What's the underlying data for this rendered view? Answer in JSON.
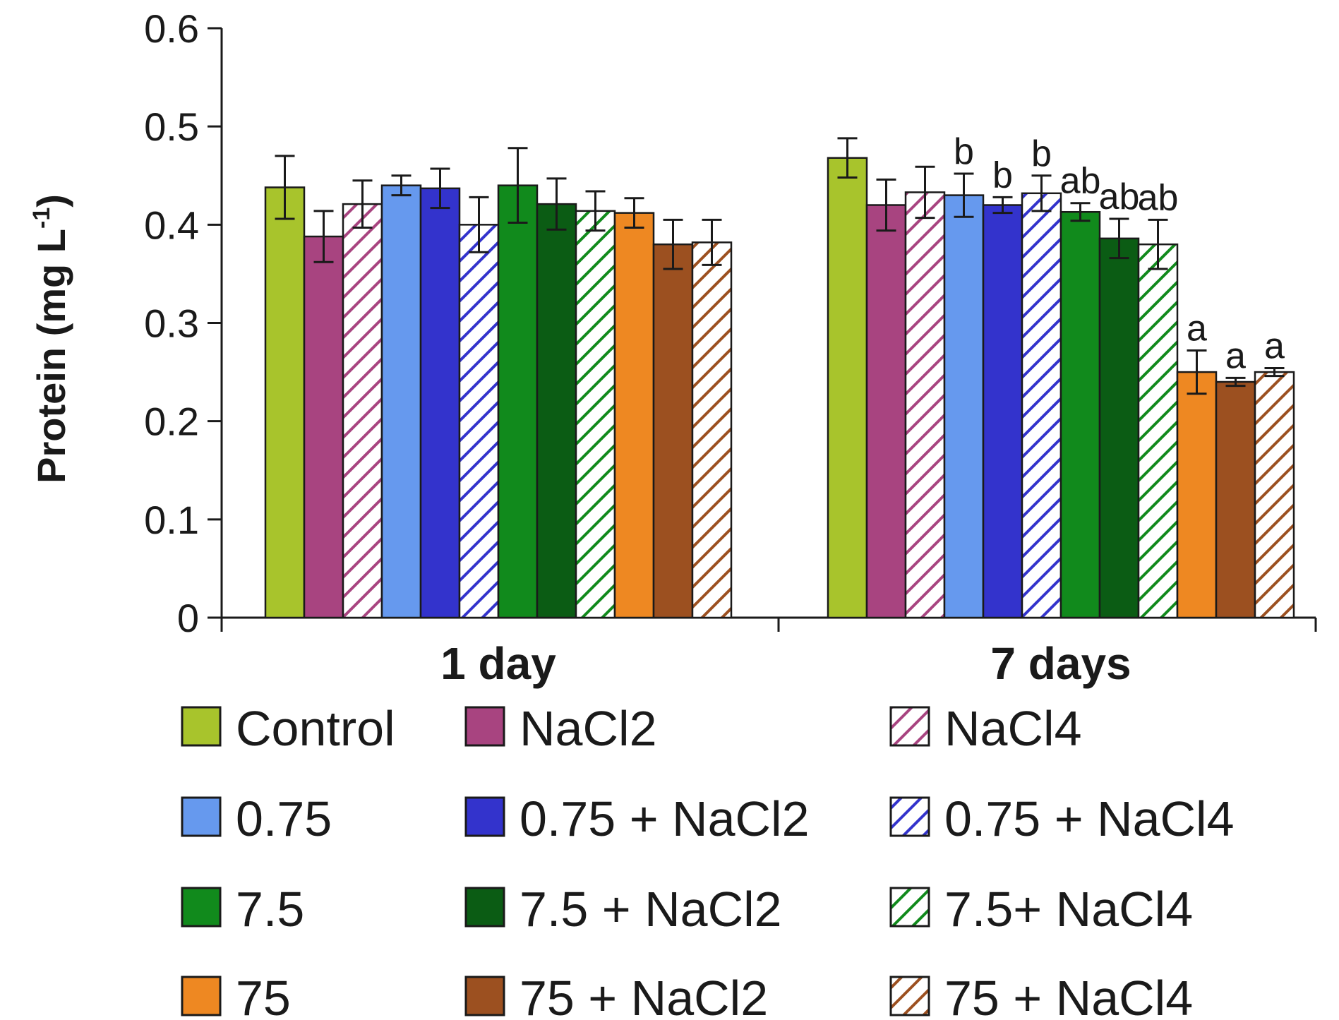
{
  "chart_data": {
    "type": "bar",
    "title": "",
    "xlabel": "",
    "ylabel": "Protein (mg L",
    "ylabel_superscript": "-1",
    "ylabel_close": ")",
    "ylim": [
      0,
      0.6
    ],
    "yticks": [
      0,
      0.1,
      0.2,
      0.3,
      0.4,
      0.5,
      0.6
    ],
    "ytick_labels": [
      "0",
      "0.1",
      "0.2",
      "0.3",
      "0.4",
      "0.5",
      "0.6"
    ],
    "grid": false,
    "legend_position": "bottom",
    "categories": [
      "1 day",
      "7 days"
    ],
    "series": [
      {
        "name": "Control",
        "color": "#a8c42c",
        "hatch": false,
        "values": [
          0.438,
          0.468
        ],
        "errors": [
          0.032,
          0.02
        ],
        "labels": [
          "",
          ""
        ]
      },
      {
        "name": "NaCl2",
        "color": "#a84480",
        "hatch": false,
        "values": [
          0.388,
          0.42
        ],
        "errors": [
          0.026,
          0.026
        ],
        "labels": [
          "",
          ""
        ]
      },
      {
        "name": "NaCl4",
        "color": "#a84480",
        "hatch": true,
        "values": [
          0.421,
          0.433
        ],
        "errors": [
          0.024,
          0.026
        ],
        "labels": [
          "",
          ""
        ]
      },
      {
        "name": "0.75",
        "color": "#6699ee",
        "hatch": false,
        "values": [
          0.44,
          0.43
        ],
        "errors": [
          0.01,
          0.022
        ],
        "labels": [
          "",
          "b"
        ]
      },
      {
        "name": "0.75 + NaCl2",
        "color": "#3333cc",
        "hatch": false,
        "values": [
          0.437,
          0.42
        ],
        "errors": [
          0.02,
          0.008
        ],
        "labels": [
          "",
          "b"
        ]
      },
      {
        "name": "0.75 + NaCl4",
        "color": "#3333cc",
        "hatch": true,
        "values": [
          0.4,
          0.432
        ],
        "errors": [
          0.028,
          0.018
        ],
        "labels": [
          "",
          "b"
        ]
      },
      {
        "name": "7.5",
        "color": "#118a1c",
        "hatch": false,
        "values": [
          0.44,
          0.413
        ],
        "errors": [
          0.038,
          0.009
        ],
        "labels": [
          "",
          "ab"
        ]
      },
      {
        "name": "7.5 + NaCl2",
        "color": "#0b5c14",
        "hatch": false,
        "values": [
          0.421,
          0.386
        ],
        "errors": [
          0.026,
          0.02
        ],
        "labels": [
          "",
          "ab"
        ]
      },
      {
        "name": "7.5+ NaCl4",
        "color": "#118a1c",
        "hatch": true,
        "values": [
          0.414,
          0.38
        ],
        "errors": [
          0.02,
          0.025
        ],
        "labels": [
          "",
          "ab"
        ]
      },
      {
        "name": "75",
        "color": "#ee8822",
        "hatch": false,
        "values": [
          0.412,
          0.25
        ],
        "errors": [
          0.015,
          0.022
        ],
        "labels": [
          "",
          "a"
        ]
      },
      {
        "name": "75 + NaCl2",
        "color": "#9c5020",
        "hatch": false,
        "values": [
          0.38,
          0.24
        ],
        "errors": [
          0.025,
          0.004
        ],
        "labels": [
          "",
          "a"
        ]
      },
      {
        "name": "75 + NaCl4",
        "color": "#9c5020",
        "hatch": true,
        "values": [
          0.382,
          0.25
        ],
        "errors": [
          0.023,
          0.004
        ],
        "labels": [
          "",
          "a"
        ]
      }
    ]
  }
}
